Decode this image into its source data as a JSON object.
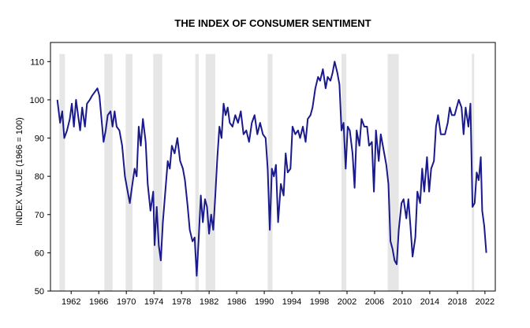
{
  "colors": {
    "line": "#1a1a8c",
    "recession": "#e6e6e6",
    "axis": "#000000",
    "background": "#ffffff"
  },
  "chart_data": {
    "type": "line",
    "title": "THE INDEX OF CONSUMER SENTIMENT",
    "ylabel": "INDEX VALUE (1966 = 100)",
    "xlabel": "",
    "xlim": [
      1959.0,
      2023.5
    ],
    "ylim": [
      50,
      115
    ],
    "yticks": [
      50,
      60,
      70,
      80,
      90,
      100,
      110
    ],
    "ytick_labels": [
      "50",
      "60",
      "70",
      "80",
      "90",
      "100",
      "110"
    ],
    "xticks": [
      1962,
      1966,
      1970,
      1974,
      1978,
      1982,
      1986,
      1990,
      1994,
      1998,
      2002,
      2006,
      2010,
      2014,
      2018,
      2022
    ],
    "xtick_labels": [
      "1962",
      "1966",
      "1970",
      "1974",
      "1978",
      "1982",
      "1986",
      "1990",
      "1994",
      "1998",
      "2002",
      "2006",
      "2010",
      "2014",
      "2018",
      "2022"
    ],
    "grid": false,
    "recessions": [
      [
        1960.3,
        1961.1
      ],
      [
        1969.9,
        1970.9
      ],
      [
        1973.9,
        1975.2
      ],
      [
        1980.0,
        1980.5
      ],
      [
        1981.5,
        1982.9
      ],
      [
        1990.5,
        1991.2
      ],
      [
        2001.2,
        2001.9
      ],
      [
        2007.9,
        2009.5
      ],
      [
        2020.1,
        2020.4
      ],
      [
        1966.8,
        1968.0
      ]
    ],
    "series": [
      {
        "values": [
          [
            1960.0,
            100
          ],
          [
            1960.4,
            94
          ],
          [
            1960.7,
            97
          ],
          [
            1961.0,
            90
          ],
          [
            1961.4,
            92
          ],
          [
            1961.8,
            95
          ],
          [
            1962.1,
            99
          ],
          [
            1962.4,
            93
          ],
          [
            1962.7,
            100
          ],
          [
            1963.0,
            96
          ],
          [
            1963.3,
            92
          ],
          [
            1963.6,
            98
          ],
          [
            1964.0,
            93
          ],
          [
            1964.3,
            99
          ],
          [
            1964.7,
            100
          ],
          [
            1965.0,
            101
          ],
          [
            1965.4,
            102
          ],
          [
            1965.8,
            103
          ],
          [
            1966.1,
            101
          ],
          [
            1966.4,
            95
          ],
          [
            1966.7,
            89
          ],
          [
            1967.0,
            92
          ],
          [
            1967.3,
            96
          ],
          [
            1967.7,
            97
          ],
          [
            1968.0,
            93
          ],
          [
            1968.3,
            97
          ],
          [
            1968.6,
            93
          ],
          [
            1969.0,
            92
          ],
          [
            1969.4,
            88
          ],
          [
            1969.8,
            80
          ],
          [
            1970.2,
            76
          ],
          [
            1970.5,
            73
          ],
          [
            1970.8,
            77
          ],
          [
            1971.2,
            82
          ],
          [
            1971.5,
            80
          ],
          [
            1971.8,
            93
          ],
          [
            1972.1,
            88
          ],
          [
            1972.4,
            95
          ],
          [
            1972.8,
            89
          ],
          [
            1973.1,
            78
          ],
          [
            1973.5,
            71
          ],
          [
            1973.9,
            76
          ],
          [
            1974.1,
            62
          ],
          [
            1974.4,
            72
          ],
          [
            1974.7,
            62
          ],
          [
            1975.0,
            58
          ],
          [
            1975.3,
            68
          ],
          [
            1975.6,
            75
          ],
          [
            1976.0,
            84
          ],
          [
            1976.3,
            82
          ],
          [
            1976.6,
            88
          ],
          [
            1977.0,
            86
          ],
          [
            1977.4,
            90
          ],
          [
            1977.8,
            84
          ],
          [
            1978.2,
            82
          ],
          [
            1978.5,
            79
          ],
          [
            1978.9,
            72
          ],
          [
            1979.2,
            66
          ],
          [
            1979.6,
            63
          ],
          [
            1979.9,
            64
          ],
          [
            1980.2,
            54
          ],
          [
            1980.5,
            64
          ],
          [
            1980.8,
            75
          ],
          [
            1981.1,
            68
          ],
          [
            1981.4,
            74
          ],
          [
            1981.7,
            72
          ],
          [
            1982.0,
            65
          ],
          [
            1982.3,
            70
          ],
          [
            1982.6,
            66
          ],
          [
            1982.9,
            75
          ],
          [
            1983.2,
            85
          ],
          [
            1983.5,
            93
          ],
          [
            1983.8,
            90
          ],
          [
            1984.1,
            99
          ],
          [
            1984.4,
            96
          ],
          [
            1984.7,
            98
          ],
          [
            1985.0,
            94
          ],
          [
            1985.4,
            93
          ],
          [
            1985.8,
            96
          ],
          [
            1986.2,
            94
          ],
          [
            1986.6,
            97
          ],
          [
            1987.0,
            91
          ],
          [
            1987.4,
            92
          ],
          [
            1987.8,
            89
          ],
          [
            1988.2,
            94
          ],
          [
            1988.6,
            96
          ],
          [
            1989.0,
            91
          ],
          [
            1989.4,
            94
          ],
          [
            1989.8,
            91
          ],
          [
            1990.2,
            90
          ],
          [
            1990.5,
            82
          ],
          [
            1990.8,
            66
          ],
          [
            1991.1,
            82
          ],
          [
            1991.4,
            80
          ],
          [
            1991.7,
            83
          ],
          [
            1992.0,
            68
          ],
          [
            1992.4,
            78
          ],
          [
            1992.8,
            75
          ],
          [
            1993.1,
            86
          ],
          [
            1993.4,
            81
          ],
          [
            1993.8,
            82
          ],
          [
            1994.1,
            93
          ],
          [
            1994.5,
            91
          ],
          [
            1994.9,
            92
          ],
          [
            1995.2,
            90
          ],
          [
            1995.6,
            93
          ],
          [
            1996.0,
            89
          ],
          [
            1996.3,
            95
          ],
          [
            1996.7,
            96
          ],
          [
            1997.0,
            98
          ],
          [
            1997.4,
            103
          ],
          [
            1997.8,
            106
          ],
          [
            1998.1,
            105
          ],
          [
            1998.5,
            108
          ],
          [
            1998.9,
            103
          ],
          [
            1999.2,
            106
          ],
          [
            1999.6,
            105
          ],
          [
            1999.9,
            107
          ],
          [
            2000.2,
            110
          ],
          [
            2000.6,
            107
          ],
          [
            2000.9,
            104
          ],
          [
            2001.2,
            92
          ],
          [
            2001.5,
            94
          ],
          [
            2001.8,
            82
          ],
          [
            2002.1,
            93
          ],
          [
            2002.4,
            92
          ],
          [
            2002.8,
            86
          ],
          [
            2003.1,
            77
          ],
          [
            2003.4,
            92
          ],
          [
            2003.8,
            88
          ],
          [
            2004.1,
            95
          ],
          [
            2004.5,
            93
          ],
          [
            2004.9,
            93
          ],
          [
            2005.2,
            88
          ],
          [
            2005.6,
            89
          ],
          [
            2005.9,
            76
          ],
          [
            2006.2,
            92
          ],
          [
            2006.6,
            84
          ],
          [
            2006.9,
            91
          ],
          [
            2007.3,
            87
          ],
          [
            2007.7,
            83
          ],
          [
            2008.0,
            78
          ],
          [
            2008.3,
            63
          ],
          [
            2008.6,
            61
          ],
          [
            2008.9,
            58
          ],
          [
            2009.2,
            57
          ],
          [
            2009.5,
            66
          ],
          [
            2009.9,
            73
          ],
          [
            2010.2,
            74
          ],
          [
            2010.6,
            69
          ],
          [
            2010.9,
            74
          ],
          [
            2011.2,
            67
          ],
          [
            2011.5,
            59
          ],
          [
            2011.9,
            64
          ],
          [
            2012.2,
            76
          ],
          [
            2012.6,
            73
          ],
          [
            2012.9,
            82
          ],
          [
            2013.2,
            76
          ],
          [
            2013.6,
            85
          ],
          [
            2013.9,
            76
          ],
          [
            2014.2,
            82
          ],
          [
            2014.6,
            84
          ],
          [
            2014.9,
            93
          ],
          [
            2015.2,
            96
          ],
          [
            2015.6,
            91
          ],
          [
            2015.9,
            91
          ],
          [
            2016.2,
            91
          ],
          [
            2016.6,
            94
          ],
          [
            2016.9,
            98
          ],
          [
            2017.2,
            96
          ],
          [
            2017.6,
            96
          ],
          [
            2017.9,
            98
          ],
          [
            2018.2,
            100
          ],
          [
            2018.6,
            98
          ],
          [
            2018.9,
            91
          ],
          [
            2019.2,
            98
          ],
          [
            2019.6,
            93
          ],
          [
            2019.9,
            99
          ],
          [
            2020.2,
            72
          ],
          [
            2020.5,
            73
          ],
          [
            2020.8,
            81
          ],
          [
            2021.1,
            79
          ],
          [
            2021.4,
            85
          ],
          [
            2021.6,
            71
          ],
          [
            2021.9,
            67
          ],
          [
            2022.2,
            60
          ]
        ]
      }
    ]
  }
}
